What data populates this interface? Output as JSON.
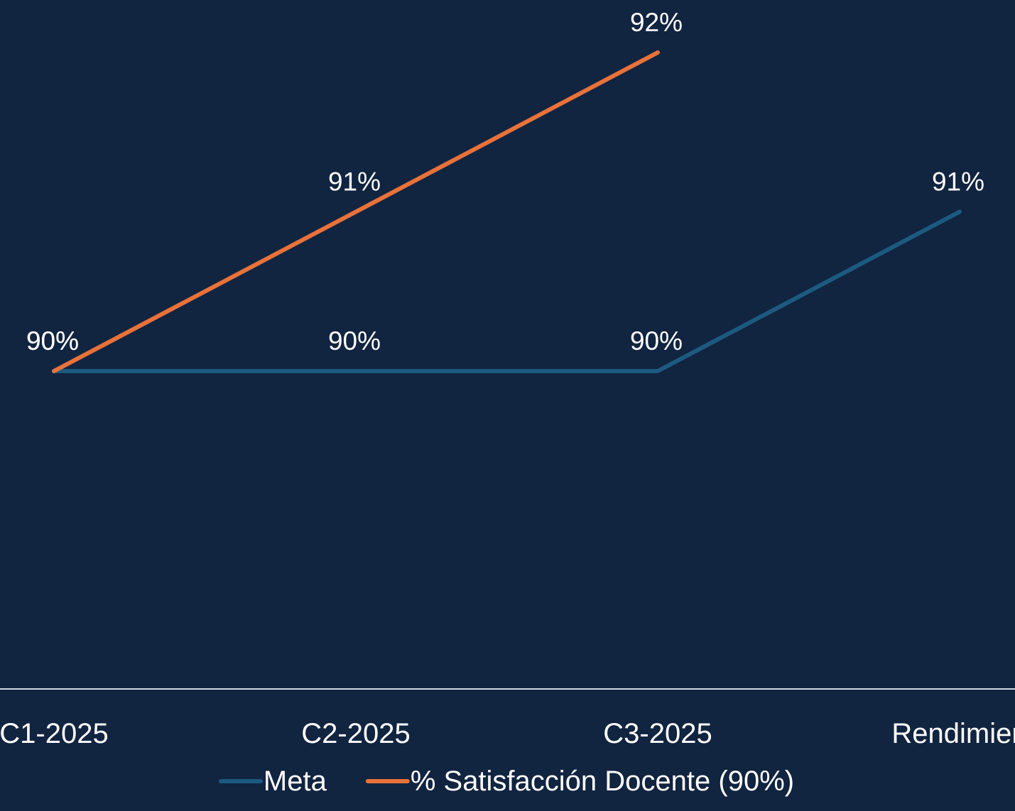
{
  "chart_data": {
    "type": "line",
    "categories": [
      "C1-2025",
      "C2-2025",
      "C3-2025",
      "Rendimien"
    ],
    "series": [
      {
        "name": "Meta",
        "values": [
          90,
          90,
          90,
          91
        ],
        "labels": [
          "90%",
          "90%",
          "90%",
          "91%"
        ],
        "color": "#1C5A80"
      },
      {
        "name": "% Satisfacción Docente (90%)",
        "values": [
          90,
          91,
          92,
          null
        ],
        "labels": [
          "90%",
          "91%",
          "92%",
          ""
        ],
        "color": "#E8723A"
      }
    ],
    "ylim": [
      88,
      92
    ],
    "grid": false,
    "legend_position": "bottom",
    "background_color": "#112440",
    "axis_line_color": "#D0D4DA",
    "text_color": "#FFFFFF"
  }
}
